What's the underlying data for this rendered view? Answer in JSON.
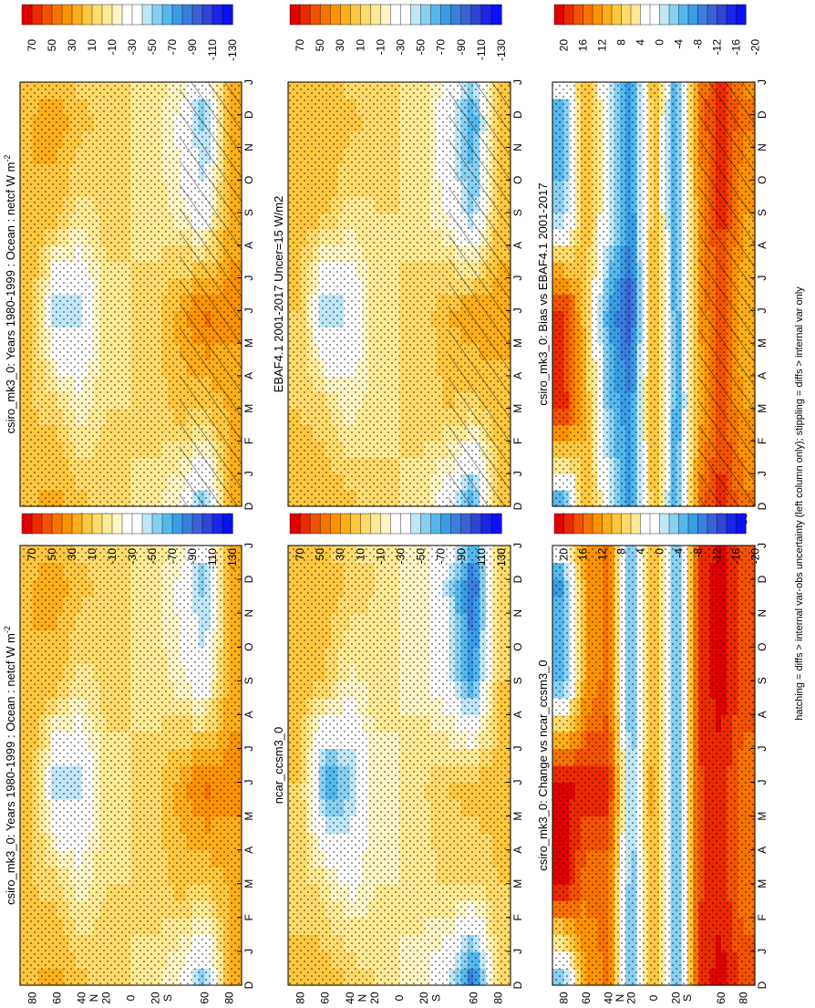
{
  "figure": {
    "footnote": "hatching = diffs > internal var-obs uncertainty (left column only); stippling = diffs > internal var only"
  },
  "colorbars": {
    "absolute": {
      "labels": [
        "70",
        "50",
        "30",
        "10",
        "-10",
        "-30",
        "-50",
        "-70",
        "-90",
        "-110",
        "-130"
      ],
      "colors": [
        "#e00000",
        "#ec2a00",
        "#f25200",
        "#f77300",
        "#fb9200",
        "#fdae19",
        "#fec740",
        "#fedb6a",
        "#fee995",
        "#fff4c4",
        "#ffffff",
        "#ffffff",
        "#bfe7f8",
        "#88d0f2",
        "#55b8ec",
        "#3a9ce4",
        "#3a7fdd",
        "#3a62d4",
        "#2f45d3",
        "#1b25e8",
        "#0a0ff8"
      ]
    },
    "difference": {
      "labels": [
        "20",
        "16",
        "12",
        "8",
        "4",
        "0",
        "-4",
        "-8",
        "-12",
        "-16",
        "-20"
      ],
      "colors": [
        "#e00000",
        "#ec2a00",
        "#f25200",
        "#f77300",
        "#fb9200",
        "#fdae19",
        "#fec740",
        "#fedb6a",
        "#fee995",
        "#ffffff",
        "#ffffff",
        "#bfe7f8",
        "#88d0f2",
        "#55b8ec",
        "#3a9ce4",
        "#3a7fdd",
        "#3a62d4",
        "#2f45d3",
        "#1b25e8",
        "#0a0ff8"
      ]
    }
  },
  "chart_data": [
    {
      "type": "heatmap",
      "title": "csiro_mk3_0: Years 1980-1999 : Ocean : netcf W m",
      "title_sup": "-2",
      "colorbar": "absolute",
      "x_axis": "latitude",
      "xlim": [
        -90,
        90
      ],
      "lat_tick_labels": [
        "80",
        "60",
        "40",
        "N",
        "20",
        "0",
        "20",
        "S",
        "60",
        "80"
      ],
      "months": [
        "D",
        "J",
        "F",
        "M",
        "A",
        "M",
        "J",
        "J",
        "A",
        "S",
        "O",
        "N",
        "D",
        "J"
      ],
      "hatching": true,
      "stippling": true,
      "zonal_profile_by_season": {
        "latitudes": [
          80,
          60,
          40,
          20,
          0,
          -20,
          -40,
          -60,
          -80
        ],
        "DJF": [
          25,
          30,
          20,
          10,
          5,
          0,
          -20,
          -55,
          30
        ],
        "MAM": [
          15,
          10,
          -10,
          5,
          5,
          10,
          20,
          15,
          25
        ],
        "JJA": [
          20,
          -50,
          -40,
          0,
          5,
          10,
          30,
          50,
          40
        ],
        "SON": [
          25,
          20,
          0,
          10,
          5,
          0,
          -10,
          -30,
          30
        ]
      }
    },
    {
      "type": "heatmap",
      "title": "csiro_mk3_0: Years 1980-1999 : Ocean : netcf W m",
      "title_sup": "-2",
      "colorbar": "absolute",
      "x_axis": "latitude",
      "xlim": [
        -90,
        90
      ],
      "lat_tick_labels": [
        "80",
        "60",
        "40",
        "N",
        "20",
        "0",
        "20",
        "S",
        "60",
        "80"
      ],
      "months": [
        "D",
        "J",
        "F",
        "M",
        "A",
        "M",
        "J",
        "J",
        "A",
        "S",
        "O",
        "N",
        "D",
        "J"
      ],
      "hatching": false,
      "stippling": true,
      "zonal_profile_by_season": {
        "latitudes": [
          80,
          60,
          40,
          20,
          0,
          -20,
          -40,
          -60,
          -80
        ],
        "DJF": [
          25,
          30,
          20,
          10,
          5,
          0,
          -20,
          -55,
          30
        ],
        "MAM": [
          15,
          10,
          -10,
          5,
          5,
          10,
          20,
          15,
          25
        ],
        "JJA": [
          20,
          -50,
          -40,
          0,
          5,
          10,
          30,
          50,
          40
        ],
        "SON": [
          25,
          20,
          0,
          10,
          5,
          0,
          -10,
          -30,
          30
        ]
      }
    },
    {
      "type": "heatmap",
      "title": "EBAF4.1 2001-2017 Uncer=15 W/m2",
      "title_sup": "",
      "colorbar": "absolute",
      "x_axis": "latitude",
      "xlim": [
        -90,
        90
      ],
      "lat_tick_labels": [
        "80",
        "60",
        "40",
        "N",
        "20",
        "0",
        "20",
        "S",
        "60",
        "80"
      ],
      "months": [
        "D",
        "J",
        "F",
        "M",
        "A",
        "M",
        "J",
        "J",
        "A",
        "S",
        "O",
        "N",
        "D",
        "J"
      ],
      "hatching": true,
      "stippling": true,
      "zonal_profile_by_season": {
        "latitudes": [
          80,
          60,
          40,
          20,
          0,
          -20,
          -40,
          -60,
          -80
        ],
        "DJF": [
          20,
          25,
          20,
          10,
          5,
          0,
          -30,
          -70,
          20
        ],
        "MAM": [
          15,
          10,
          -10,
          0,
          5,
          10,
          15,
          10,
          20
        ],
        "JJA": [
          15,
          -50,
          -35,
          0,
          5,
          10,
          25,
          35,
          30
        ],
        "SON": [
          20,
          20,
          0,
          5,
          5,
          0,
          -20,
          -50,
          20
        ]
      }
    },
    {
      "type": "heatmap",
      "title": "ncar_ccsm3_0",
      "title_sup": "",
      "colorbar": "absolute",
      "x_axis": "latitude",
      "xlim": [
        -90,
        90
      ],
      "lat_tick_labels": [
        "80",
        "60",
        "40",
        "N",
        "20",
        "0",
        "20",
        "S",
        "60",
        "80"
      ],
      "months": [
        "D",
        "J",
        "F",
        "M",
        "A",
        "M",
        "J",
        "J",
        "A",
        "S",
        "O",
        "N",
        "D",
        "J"
      ],
      "hatching": false,
      "stippling": true,
      "zonal_profile_by_season": {
        "latitudes": [
          80,
          60,
          40,
          20,
          0,
          -20,
          -40,
          -60,
          -80
        ],
        "DJF": [
          20,
          25,
          15,
          5,
          -5,
          -10,
          -40,
          -90,
          10
        ],
        "MAM": [
          10,
          0,
          -20,
          -5,
          -5,
          0,
          10,
          5,
          15
        ],
        "JJA": [
          15,
          -70,
          -50,
          -10,
          -5,
          5,
          15,
          20,
          20
        ],
        "SON": [
          20,
          15,
          -10,
          0,
          -5,
          -10,
          -30,
          -70,
          15
        ]
      }
    },
    {
      "type": "heatmap",
      "title": "csiro_mk3_0: Bias vs EBAF4.1 2001-2017",
      "title_sup": "",
      "colorbar": "difference",
      "x_axis": "latitude",
      "xlim": [
        -90,
        90
      ],
      "lat_tick_labels": [
        "80",
        "60",
        "40",
        "N",
        "20",
        "0",
        "20",
        "S",
        "60",
        "80"
      ],
      "months": [
        "D",
        "J",
        "F",
        "M",
        "A",
        "M",
        "J",
        "J",
        "A",
        "S",
        "O",
        "N",
        "D",
        "J"
      ],
      "hatching": true,
      "stippling": true,
      "zonal_profile_by_season": {
        "latitudes": [
          80,
          60,
          40,
          20,
          0,
          -20,
          -40,
          -60,
          -80
        ],
        "DJF": [
          -8,
          10,
          0,
          -10,
          10,
          -8,
          15,
          20,
          15
        ],
        "MAM": [
          20,
          10,
          -5,
          -10,
          12,
          -8,
          10,
          18,
          12
        ],
        "JJA": [
          20,
          8,
          -8,
          -14,
          12,
          -8,
          12,
          18,
          10
        ],
        "SON": [
          -4,
          10,
          0,
          -10,
          10,
          -8,
          12,
          20,
          12
        ]
      }
    },
    {
      "type": "heatmap",
      "title": "csiro_mk3_0: Change vs ncar_ccsm3_0",
      "title_sup": "",
      "colorbar": "difference",
      "x_axis": "latitude",
      "xlim": [
        -90,
        90
      ],
      "lat_tick_labels": [
        "80",
        "60",
        "40",
        "N",
        "20",
        "0",
        "20",
        "S",
        "60",
        "80"
      ],
      "months": [
        "D",
        "J",
        "F",
        "M",
        "A",
        "M",
        "J",
        "J",
        "A",
        "S",
        "O",
        "N",
        "D",
        "J"
      ],
      "hatching": false,
      "stippling": true,
      "zonal_profile_by_season": {
        "latitudes": [
          80,
          60,
          40,
          20,
          0,
          -20,
          -40,
          -60,
          -80
        ],
        "DJF": [
          -8,
          12,
          15,
          -8,
          12,
          -8,
          20,
          22,
          18
        ],
        "MAM": [
          22,
          15,
          15,
          -6,
          12,
          -8,
          18,
          20,
          15
        ],
        "JJA": [
          22,
          20,
          20,
          -4,
          12,
          -8,
          18,
          20,
          15
        ],
        "SON": [
          -6,
          12,
          15,
          -8,
          12,
          -8,
          20,
          22,
          18
        ]
      }
    }
  ]
}
